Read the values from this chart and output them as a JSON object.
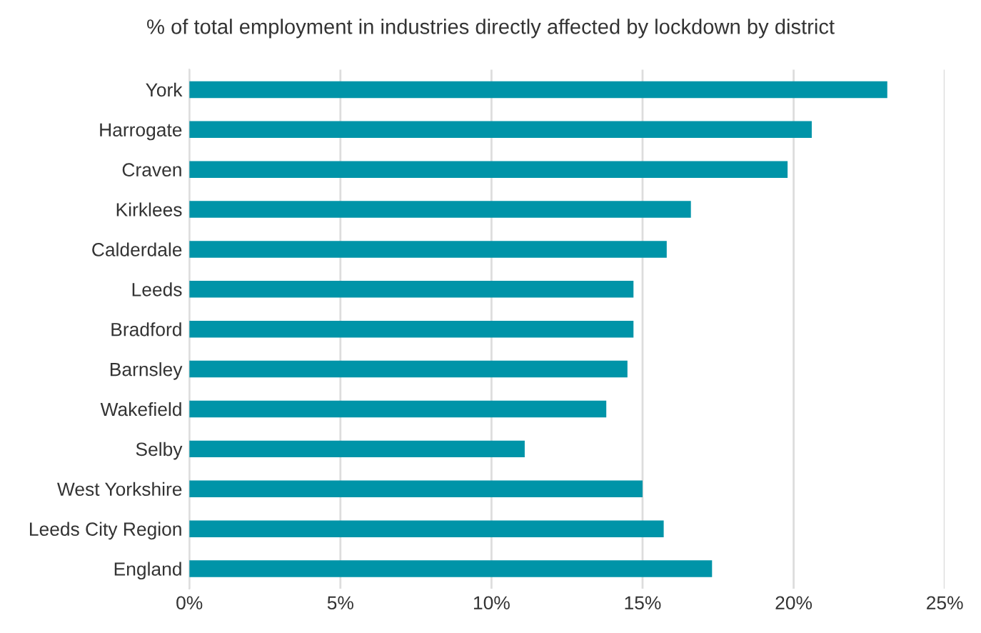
{
  "chart_data": {
    "type": "bar",
    "orientation": "horizontal",
    "title": "% of total employment in industries directly affected by lockdown by district",
    "categories": [
      "York",
      "Harrogate",
      "Craven",
      "Kirklees",
      "Calderdale",
      "Leeds",
      "Bradford",
      "Barnsley",
      "Wakefield",
      "Selby",
      "West Yorkshire",
      "Leeds City Region",
      "England"
    ],
    "values": [
      23.1,
      20.6,
      19.8,
      16.6,
      15.8,
      14.7,
      14.7,
      14.5,
      13.8,
      11.1,
      15.0,
      15.7,
      17.3
    ],
    "color": "#0094a8",
    "xlim": [
      0,
      25
    ],
    "xticks": [
      {
        "value": 0,
        "label": "0%"
      },
      {
        "value": 5,
        "label": "5%"
      },
      {
        "value": 10,
        "label": "10%"
      },
      {
        "value": 15,
        "label": "15%"
      },
      {
        "value": 20,
        "label": "20%"
      },
      {
        "value": 25,
        "label": "25%"
      }
    ],
    "grid": "x",
    "legend": false
  }
}
